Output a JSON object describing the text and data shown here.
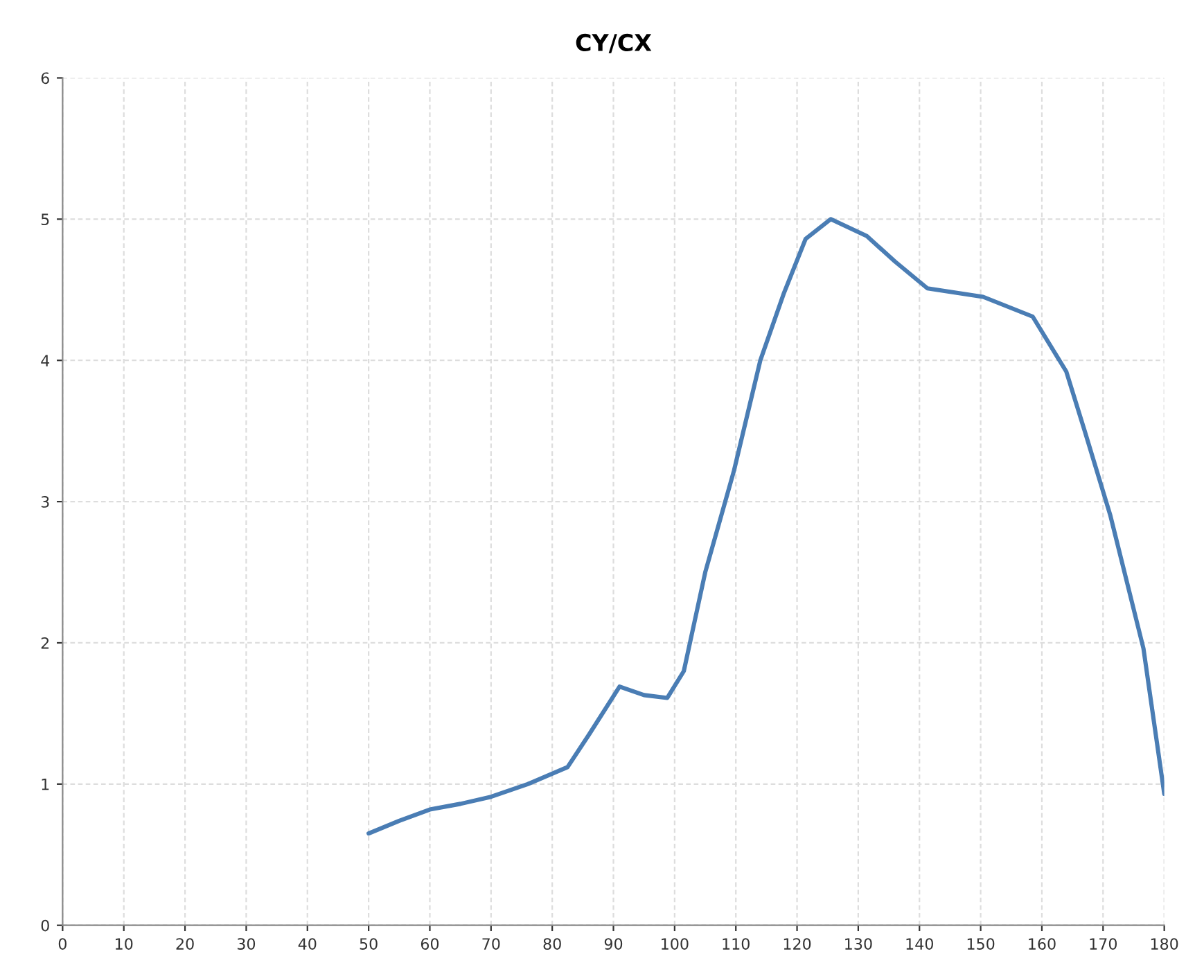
{
  "chart_data": {
    "type": "line",
    "title": "CY/CX",
    "series": [
      {
        "color": "#4a7db4",
        "x": [
          50,
          55,
          60,
          65,
          70,
          76,
          82.5,
          86,
          91,
          95,
          98.8,
          101.5,
          105,
          109.7,
          114,
          117.8,
          121.4,
          125.5,
          131.4,
          136,
          141.3,
          150.4,
          158.5,
          164,
          167,
          171.2,
          176.6,
          180
        ],
        "values": [
          0.65,
          0.74,
          0.82,
          0.86,
          0.91,
          1.0,
          1.12,
          1.35,
          1.69,
          1.63,
          1.61,
          1.8,
          2.5,
          3.22,
          4.0,
          4.47,
          4.86,
          5.0,
          4.88,
          4.7,
          4.51,
          4.45,
          4.31,
          3.92,
          3.5,
          2.9,
          1.96,
          0.93
        ]
      }
    ],
    "xlim": [
      0,
      180
    ],
    "xticks": [
      0,
      10,
      20,
      30,
      40,
      50,
      60,
      70,
      80,
      90,
      100,
      110,
      120,
      130,
      140,
      150,
      160,
      170,
      180
    ],
    "ylim": [
      0,
      6
    ],
    "yticks": [
      0,
      1,
      2,
      3,
      4,
      5,
      6
    ],
    "grid": true,
    "marker": "none",
    "line_style": "solid",
    "legend": false
  }
}
